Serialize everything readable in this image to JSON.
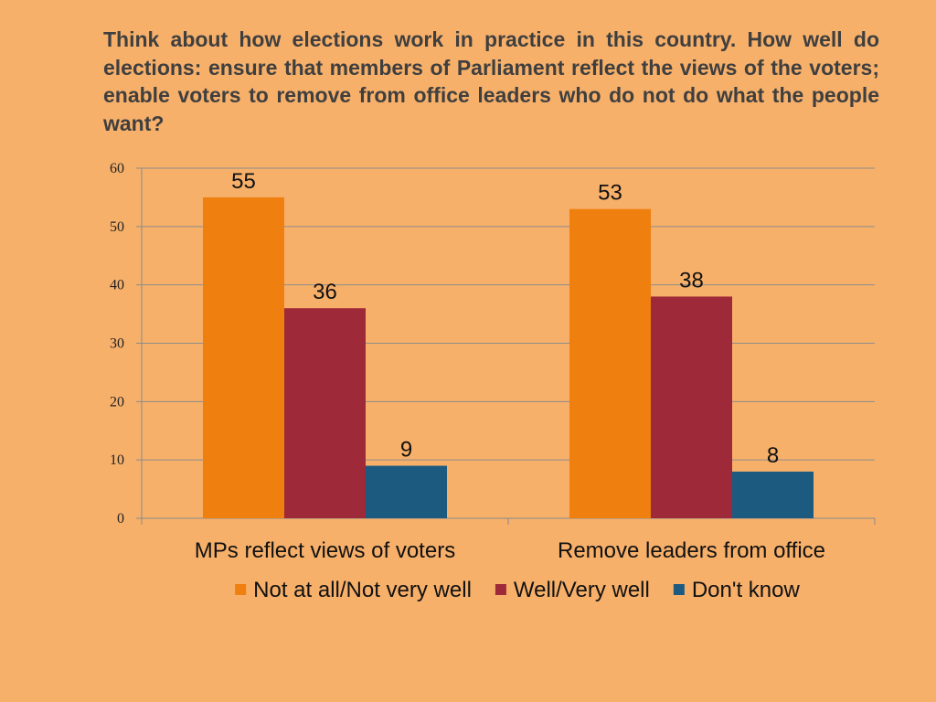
{
  "slide": {
    "title": "Think about how elections work in practice in this country. How well do elections: ensure that members of Parliament reflect the views of the voters; enable voters to remove from office leaders who do not do what the people want?",
    "background_color": "#f7b06a"
  },
  "chart_data": {
    "type": "bar",
    "title": "Think about how elections work in practice in this country. How well do elections: ensure that members of Parliament reflect the views of the voters; enable voters to remove from office leaders who do not do what the people want?",
    "categories": [
      "MPs reflect views of voters",
      "Remove leaders from office"
    ],
    "series": [
      {
        "name": "Not at all/Not very well",
        "values": [
          55,
          53
        ],
        "color": "#ef7f0e"
      },
      {
        "name": "Well/Very well",
        "values": [
          36,
          38
        ],
        "color": "#9e2939"
      },
      {
        "name": "Don't know",
        "values": [
          9,
          8
        ],
        "color": "#1d5a80"
      }
    ],
    "yticks": [
      "0",
      "10",
      "20",
      "30",
      "40",
      "50",
      "60"
    ],
    "ylim": [
      0,
      60
    ],
    "xlabel": "",
    "ylabel": "",
    "grid": true,
    "legend_position": "bottom",
    "data_labels": true
  }
}
